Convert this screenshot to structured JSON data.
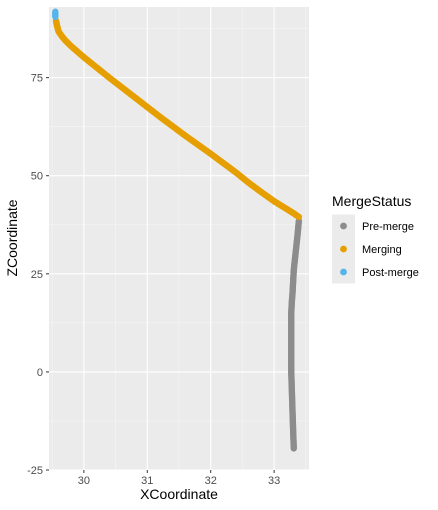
{
  "chart_data": {
    "type": "scatter",
    "title": "",
    "xlabel": "XCoordinate",
    "ylabel": "ZCoordinate",
    "xlim": [
      29.45,
      33.55
    ],
    "ylim": [
      -25,
      93
    ],
    "x_ticks": [
      30,
      31,
      32,
      33
    ],
    "y_ticks": [
      -25,
      0,
      25,
      50,
      75
    ],
    "grid": true,
    "legend": {
      "title": "MergeStatus",
      "placement": "right",
      "entries": [
        "Pre-merge",
        "Merging",
        "Post-merge"
      ]
    },
    "series": [
      {
        "name": "Pre-merge",
        "color": "#8c8c8c",
        "x": [
          33.31,
          33.3,
          33.29,
          33.28,
          33.27,
          33.27,
          33.27,
          33.27,
          33.27,
          33.28,
          33.29,
          33.3,
          33.31,
          33.33,
          33.35,
          33.37,
          33.39
        ],
        "y": [
          -19.5,
          -15,
          -10,
          -5,
          0,
          5,
          10,
          12,
          15,
          18,
          20,
          23,
          26,
          29,
          32,
          35,
          38.5
        ]
      },
      {
        "name": "Merging",
        "color": "#e69f00",
        "x": [
          33.39,
          33.3,
          33.2,
          33.0,
          32.8,
          32.6,
          32.4,
          32.2,
          32.0,
          31.8,
          31.6,
          31.4,
          31.2,
          31.0,
          30.8,
          30.6,
          30.4,
          30.2,
          30.0,
          29.9,
          29.8,
          29.7,
          29.65,
          29.6,
          29.58,
          29.56
        ],
        "y": [
          39.5,
          40.5,
          41.5,
          43.5,
          45.8,
          48.2,
          50.8,
          53.2,
          55.6,
          57.9,
          60.2,
          62.6,
          65.0,
          67.5,
          70.0,
          72.5,
          75.0,
          77.6,
          80.2,
          81.6,
          83.0,
          84.6,
          85.6,
          86.8,
          88.0,
          89.5
        ]
      },
      {
        "name": "Post-merge",
        "color": "#56b4e9",
        "x": [
          29.55,
          29.55,
          29.55
        ],
        "y": [
          90.5,
          91.2,
          91.8
        ]
      }
    ]
  }
}
